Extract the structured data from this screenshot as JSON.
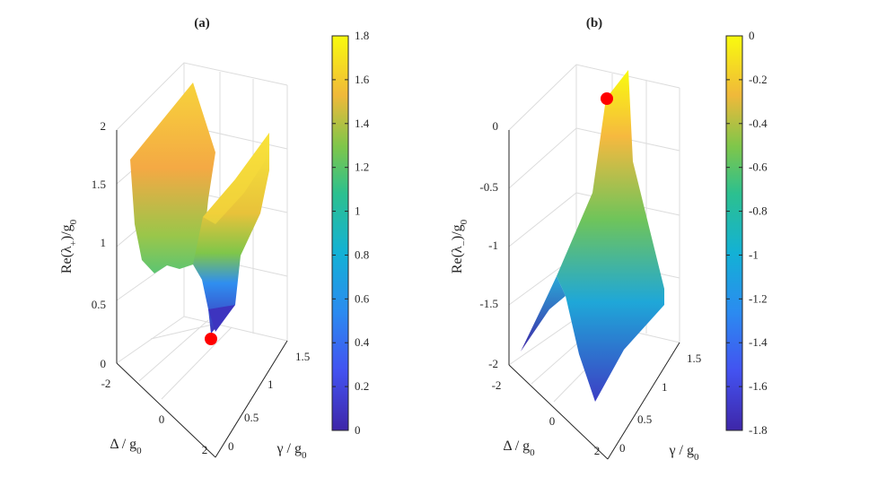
{
  "chart_data": [
    {
      "type": "surface3d",
      "panel_label": "(a)",
      "zlabel": "Re(λ+)/g0",
      "zlabel_parts": {
        "pre": "Re(λ",
        "sub1": "+",
        "mid": ")/g",
        "sub2": "0"
      },
      "xlabel_parts": {
        "pre": "Δ / g",
        "sub": "0"
      },
      "ylabel_parts": {
        "pre": "γ / g",
        "sub": "0"
      },
      "xlabel": "Δ / g0",
      "ylabel": "γ / g0",
      "x_range": [
        -2,
        2
      ],
      "y_range": [
        0,
        1.5
      ],
      "z_range": [
        0,
        2
      ],
      "x_ticks": [
        "-2",
        "0",
        "2"
      ],
      "y_ticks": [
        "0",
        "0.5",
        "1",
        "1.5"
      ],
      "z_ticks": [
        "0",
        "0.5",
        "1",
        "1.5",
        "2"
      ],
      "colorbar": {
        "range": [
          0,
          1.8
        ],
        "ticks": [
          "0",
          "0.2",
          "0.4",
          "0.6",
          "0.8",
          "1",
          "1.2",
          "1.4",
          "1.6",
          "1.8"
        ]
      },
      "marker": {
        "x": 0,
        "y": 0,
        "z": 0,
        "color": "#ff0000",
        "label": "exceptional point"
      },
      "surface_profile": [
        {
          "x": -2.0,
          "z_at_y0": 1.75,
          "z_at_ymax": 1.78
        },
        {
          "x": -1.0,
          "z_at_y0": 1.05,
          "z_at_ymax": 1.55
        },
        {
          "x": -0.2,
          "z_at_y0": 0.55,
          "z_at_ymax": 1.25
        },
        {
          "x": 0.0,
          "z_at_y0": 0.0,
          "z_at_ymax": 1.2
        },
        {
          "x": 1.0,
          "z_at_y0": 1.0,
          "z_at_ymax": 1.55
        },
        {
          "x": 2.0,
          "z_at_y0": 1.75,
          "z_at_ymax": 1.8
        }
      ]
    },
    {
      "type": "surface3d",
      "panel_label": "(b)",
      "zlabel": "Re(λ-)/g0",
      "zlabel_parts": {
        "pre": "Re(λ",
        "sub1": "−",
        "mid": ")/g",
        "sub2": "0"
      },
      "xlabel_parts": {
        "pre": "Δ / g",
        "sub": "0"
      },
      "ylabel_parts": {
        "pre": "γ / g",
        "sub": "0"
      },
      "xlabel": "Δ / g0",
      "ylabel": "γ / g0",
      "x_range": [
        -2,
        2
      ],
      "y_range": [
        0,
        1.5
      ],
      "z_range": [
        -2,
        0
      ],
      "x_ticks": [
        "-2",
        "0",
        "2"
      ],
      "y_ticks": [
        "0",
        "0.5",
        "1",
        "1.5"
      ],
      "z_ticks": [
        "-2",
        "-1.5",
        "-1",
        "-0.5",
        "0"
      ],
      "colorbar": {
        "range": [
          -1.8,
          0
        ],
        "ticks": [
          "-1.8",
          "-1.6",
          "-1.4",
          "-1.2",
          "-1",
          "-0.8",
          "-0.6",
          "-0.4",
          "-0.2",
          "0"
        ]
      },
      "marker": {
        "x": 0,
        "y": 0,
        "z": 0,
        "color": "#ff0000",
        "label": "exceptional point"
      },
      "surface_profile": [
        {
          "x": -2.0,
          "z_at_y0": -1.75,
          "z_at_ymax": -1.78
        },
        {
          "x": -1.0,
          "z_at_y0": -1.05,
          "z_at_ymax": -1.55
        },
        {
          "x": 0.0,
          "z_at_y0": 0.0,
          "z_at_ymax": -1.2
        },
        {
          "x": 1.0,
          "z_at_y0": -1.0,
          "z_at_ymax": -1.55
        },
        {
          "x": 2.0,
          "z_at_y0": -1.75,
          "z_at_ymax": -1.8
        }
      ]
    }
  ]
}
